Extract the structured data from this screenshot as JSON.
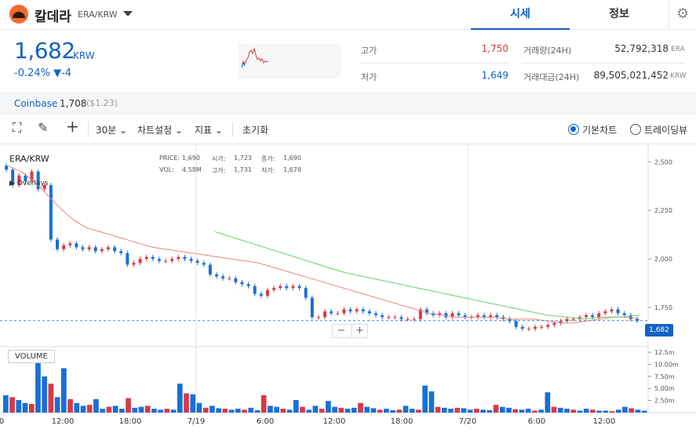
{
  "header": {
    "coin_name": "칼데라",
    "pair": "ERA/KRW",
    "tabs": [
      {
        "label": "시세",
        "active": true
      },
      {
        "label": "정보",
        "active": false
      }
    ]
  },
  "summary": {
    "price": "1,682",
    "unit": "KRW",
    "change": "-0.24% ▼-4",
    "high_label": "고가",
    "high": "1,750",
    "low_label": "저가",
    "low": "1,649",
    "volume_label": "거래량(24H)",
    "volume": "52,792,318",
    "volume_unit": "ERA",
    "turnover_label": "거래대금(24H)",
    "turnover": "89,505,021,452",
    "turnover_unit": "KRW"
  },
  "coinbase": {
    "label": "Coinbase",
    "price": "1,708",
    "usd": "($1.23)"
  },
  "toolbar": {
    "interval": "30분",
    "chart_settings": "차트설정",
    "indicators": "지표",
    "reset": "초기화",
    "basic_chart": "기본차트",
    "tradingview": "트레이딩뷰"
  },
  "chart": {
    "pair_label": "ERA/KRW",
    "overlays_label": "Overlays",
    "volume_label": "VOLUME",
    "last_price_tag": "1,682",
    "ohlc_labels": {
      "price": "PRICE:",
      "open": "시가:",
      "close": "종가:",
      "vol": "VOL:",
      "high": "고가:",
      "low": "저가:"
    },
    "ohlc_values": {
      "price": "1,690",
      "open": "1,723",
      "close": "1,690",
      "vol": "4.58M",
      "high": "1,731",
      "low": "1,678"
    },
    "price_axis": [
      "2,500",
      "2,250",
      "2,000",
      "1,750"
    ],
    "volume_axis": [
      "12.5m",
      "10.00m",
      "7.50m",
      "5.00m",
      "2.50m"
    ],
    "time_axis": [
      "0",
      "12:00",
      "18:00",
      "7/19",
      "6:00",
      "12:00",
      "18:00",
      "7/20",
      "6:00",
      "12:00"
    ],
    "colors": {
      "up": "#d63a48",
      "down": "#1a6fd6",
      "ma_short": "#e8867e",
      "ma_long": "#6ccf6a",
      "last_price": "#1261c4"
    }
  },
  "chart_data": {
    "type": "candlestick",
    "ylim": [
      1580,
      2550
    ],
    "volume_ylim": [
      0,
      13
    ],
    "closes": [
      2460,
      2380,
      2430,
      2400,
      2450,
      2360,
      2380,
      2100,
      2050,
      2070,
      2080,
      2060,
      2050,
      2060,
      2040,
      2050,
      2060,
      2040,
      2030,
      1970,
      1980,
      2000,
      2010,
      2000,
      1990,
      1990,
      2000,
      2010,
      2000,
      1990,
      1980,
      1970,
      1920,
      1910,
      1900,
      1900,
      1880,
      1870,
      1860,
      1820,
      1810,
      1840,
      1850,
      1860,
      1850,
      1860,
      1850,
      1800,
      1700,
      1700,
      1730,
      1720,
      1720,
      1740,
      1730,
      1740,
      1730,
      1720,
      1710,
      1700,
      1700,
      1700,
      1690,
      1690,
      1690,
      1740,
      1720,
      1710,
      1720,
      1700,
      1720,
      1710,
      1700,
      1700,
      1710,
      1700,
      1710,
      1700,
      1690,
      1680,
      1650,
      1640,
      1640,
      1650,
      1650,
      1660,
      1670,
      1680,
      1690,
      1690,
      1700,
      1710,
      1700,
      1720,
      1730,
      1740,
      1720,
      1710,
      1690,
      1682
    ],
    "ma_short": [
      2480,
      2450,
      2400,
      2330,
      2260,
      2200,
      2160,
      2140,
      2120,
      2100,
      2080,
      2060,
      2050,
      2040,
      2030,
      2020,
      2010,
      2000,
      1990,
      1980,
      1960,
      1940,
      1920,
      1900,
      1880,
      1860,
      1840,
      1820,
      1800,
      1780,
      1760,
      1740,
      1720,
      1710,
      1700,
      1700,
      1700,
      1700,
      1690,
      1690,
      1690,
      1680,
      1670,
      1670,
      1680,
      1690,
      1700,
      1700,
      1690
    ],
    "ma_long": [
      2140,
      2110,
      2080,
      2050,
      2020,
      1990,
      1960,
      1930,
      1910,
      1890,
      1870,
      1850,
      1830,
      1810,
      1790,
      1770,
      1750,
      1730,
      1710,
      1700,
      1690,
      1700,
      1700,
      1710
    ],
    "volume": [
      3.6,
      3.2,
      2.6,
      2.0,
      1.8,
      12.5,
      7.5,
      6.0,
      3.2,
      9.2,
      2.8,
      2.0,
      1.4,
      1.6,
      2.8,
      0.8,
      1.2,
      1.4,
      0.8,
      3.0,
      1.0,
      1.2,
      1.4,
      0.8,
      0.6,
      0.8,
      0.6,
      6.0,
      4.0,
      3.8,
      2.0,
      1.0,
      1.4,
      0.9,
      0.8,
      0.6,
      0.8,
      0.6,
      1.0,
      0.5,
      3.6,
      1.4,
      1.2,
      0.8,
      0.6,
      2.6,
      1.2,
      0.6,
      1.4,
      0.8,
      2.4,
      1.2,
      1.0,
      0.8,
      1.0,
      2.0,
      1.2,
      0.9,
      0.6,
      0.8,
      0.5,
      0.6,
      1.4,
      0.8,
      0.6,
      5.6,
      4.4,
      1.2,
      1.0,
      0.8,
      1.0,
      0.9,
      0.6,
      0.8,
      0.6,
      0.5,
      1.6,
      1.2,
      1.0,
      0.7,
      0.6,
      0.8,
      0.4,
      0.6,
      4.2,
      1.2,
      1.0,
      0.8,
      0.6,
      0.4,
      0.8,
      0.6,
      0.4,
      0.4,
      0.3,
      0.6,
      1.2,
      0.9,
      0.6,
      0.4
    ]
  }
}
